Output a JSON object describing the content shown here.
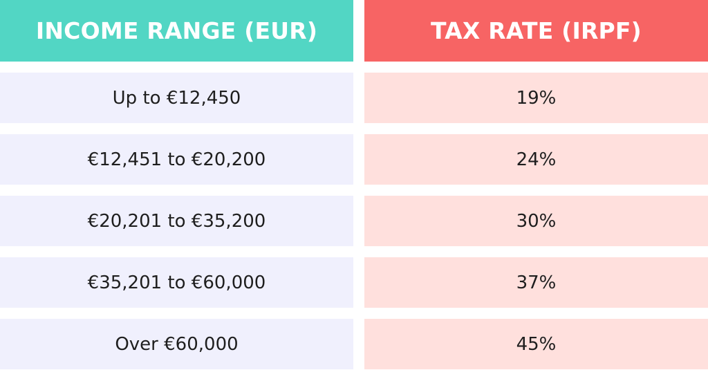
{
  "chart_data": {
    "type": "table",
    "columns": [
      "INCOME RANGE (EUR)",
      "TAX RATE (IRPF)"
    ],
    "rows": [
      [
        "Up to €12,450",
        "19%"
      ],
      [
        "€12,451 to €20,200",
        "24%"
      ],
      [
        "€20,201 to €35,200",
        "30%"
      ],
      [
        "€35,201 to €60,000",
        "37%"
      ],
      [
        "Over €60,000",
        "45%"
      ]
    ]
  },
  "colors": {
    "income_header": "#52d6c4",
    "rate_header": "#f76464",
    "income_row": "#f0f0fd",
    "rate_row": "#ffe0dd"
  }
}
